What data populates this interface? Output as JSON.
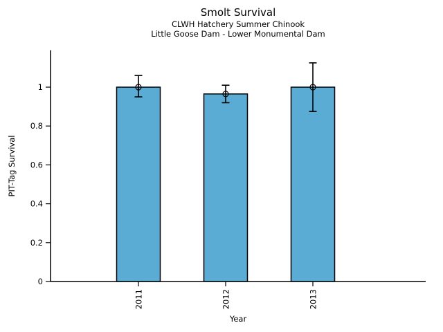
{
  "figure": {
    "background": "#ffffff",
    "text_color": "#000000"
  },
  "chart_data": {
    "type": "bar",
    "title": "Smolt Survival",
    "subtitle_lines": [
      "CLWH Hatchery Summer Chinook",
      "Little Goose Dam - Lower Monumental Dam"
    ],
    "xlabel": "Year",
    "ylabel": "PIT-Tag Survival",
    "categories": [
      "2011",
      "2012",
      "2013"
    ],
    "values": [
      1.0,
      0.965,
      1.0
    ],
    "error_low": [
      0.95,
      0.92,
      0.875
    ],
    "error_high": [
      1.06,
      1.01,
      1.125
    ],
    "marker": "open-circle",
    "ytick_values": [
      0,
      0.2,
      0.4,
      0.6,
      0.8,
      1
    ],
    "ytick_labels": [
      "0",
      "0.2",
      "0.4",
      "0.6",
      "0.8",
      "1"
    ],
    "ylim": [
      0,
      1.19
    ],
    "xtick_rotation": 90,
    "grid": false,
    "legend": false,
    "bar_color": "#5AACD5",
    "bar_edge_color": "#000000",
    "error_color": "#000000",
    "axis_color": "#000000"
  }
}
